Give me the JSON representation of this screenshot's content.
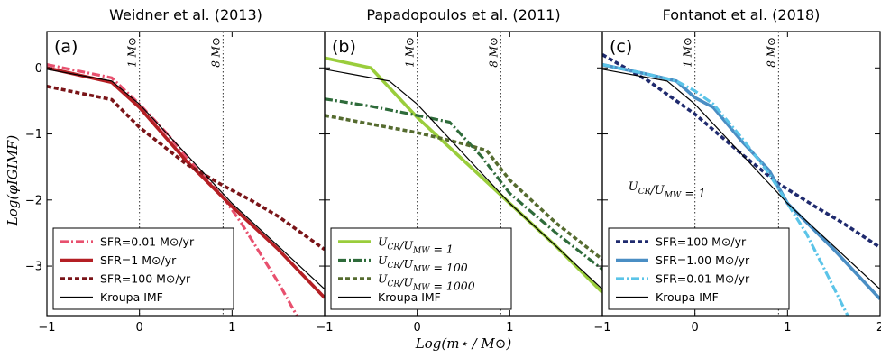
{
  "figure": {
    "xlabel": "Log(m⋆ / M⊙)",
    "ylabel": "Log(φIGIMF)"
  },
  "chart_data": [
    {
      "type": "line",
      "panel_label": "(a)",
      "title": "Weidner et al. (2013)",
      "xlim": [
        -1,
        2
      ],
      "ylim": [
        -3.75,
        0.55
      ],
      "xticks": [
        -1,
        0,
        1
      ],
      "yticks": [
        0,
        -1,
        -2,
        -3
      ],
      "vlines": [
        {
          "x": 0,
          "label": "1 M⊙"
        },
        {
          "x": 0.903,
          "label": "8 M⊙"
        }
      ],
      "legend_position": "lower-left",
      "series": [
        {
          "name": "SFR=0.01 M⊙/yr",
          "color": "#e8506e",
          "style": "dashdot",
          "x": [
            -1,
            -0.3,
            0,
            0.3,
            0.6,
            0.9,
            1.1,
            1.3,
            1.5,
            1.7
          ],
          "y": [
            0.05,
            -0.15,
            -0.55,
            -1.0,
            -1.5,
            -1.95,
            -2.35,
            -2.8,
            -3.25,
            -3.75
          ]
        },
        {
          "name": "SFR=1 M⊙/yr",
          "color": "#b41f24",
          "style": "solid",
          "x": [
            -1,
            -0.3,
            0,
            0.5,
            1.0,
            1.5,
            2.0
          ],
          "y": [
            0.0,
            -0.22,
            -0.6,
            -1.4,
            -2.1,
            -2.75,
            -3.48
          ]
        },
        {
          "name": "SFR=100 M⊙/yr",
          "color": "#7a1418",
          "style": "dashed",
          "x": [
            -1,
            -0.3,
            0,
            0.5,
            0.9,
            1.2,
            1.5,
            2.0
          ],
          "y": [
            -0.28,
            -0.48,
            -0.9,
            -1.45,
            -1.78,
            -2.0,
            -2.25,
            -2.75
          ]
        },
        {
          "name": "Kroupa IMF",
          "color": "#000000",
          "style": "thin",
          "x": [
            -1,
            -0.3,
            0,
            0.5,
            1.0,
            1.5,
            2.0
          ],
          "y": [
            -0.02,
            -0.2,
            -0.55,
            -1.3,
            -2.05,
            -2.7,
            -3.35
          ]
        }
      ]
    },
    {
      "type": "line",
      "panel_label": "(b)",
      "title": "Papadopoulos et al. (2011)",
      "xlim": [
        -1,
        2
      ],
      "ylim": [
        -3.75,
        0.55
      ],
      "xticks": [
        -1,
        0,
        1
      ],
      "yticks": [
        0,
        -1,
        -2,
        -3
      ],
      "vlines": [
        {
          "x": 0,
          "label": "1 M⊙"
        },
        {
          "x": 0.903,
          "label": "8 M⊙"
        }
      ],
      "legend_position": "lower-left",
      "series": [
        {
          "name": "U_CR/U_MW = 1",
          "color": "#9acd3c",
          "style": "solid",
          "x": [
            -1,
            -0.5,
            0,
            0.5,
            1.0,
            1.5,
            2.0
          ],
          "y": [
            0.15,
            0.0,
            -0.75,
            -1.4,
            -2.05,
            -2.7,
            -3.4
          ]
        },
        {
          "name": "U_CR/U_MW = 100",
          "color": "#2e6b3a",
          "style": "dashdot",
          "x": [
            -1,
            -0.5,
            0,
            0.35,
            0.7,
            1.0,
            1.5,
            2.0
          ],
          "y": [
            -0.47,
            -0.58,
            -0.72,
            -0.82,
            -1.35,
            -1.9,
            -2.5,
            -3.05
          ]
        },
        {
          "name": "U_CR/U_MW = 1000",
          "color": "#556b2f",
          "style": "dashed",
          "x": [
            -1,
            -0.5,
            0,
            0.5,
            0.75,
            1.0,
            1.5,
            2.0
          ],
          "y": [
            -0.72,
            -0.85,
            -0.98,
            -1.15,
            -1.25,
            -1.7,
            -2.35,
            -2.9
          ]
        },
        {
          "name": "Kroupa IMF",
          "color": "#000000",
          "style": "thin",
          "x": [
            -1,
            -0.3,
            0,
            0.5,
            1.0,
            1.5,
            2.0
          ],
          "y": [
            -0.02,
            -0.2,
            -0.55,
            -1.3,
            -2.05,
            -2.7,
            -3.35
          ]
        }
      ]
    },
    {
      "type": "line",
      "panel_label": "(c)",
      "title": "Fontanot et al. (2018)",
      "xlim": [
        -1,
        2
      ],
      "ylim": [
        -3.75,
        0.55
      ],
      "xticks": [
        -1,
        0,
        1,
        2
      ],
      "yticks": [
        0,
        -1,
        -2,
        -3
      ],
      "vlines": [
        {
          "x": 0,
          "label": "1 M⊙"
        },
        {
          "x": 0.903,
          "label": "8 M⊙"
        }
      ],
      "annotation": {
        "text": "U_CR/U_MW = 1",
        "x": -0.72,
        "y": -1.85
      },
      "legend_position": "lower-left",
      "series": [
        {
          "name": "SFR=100 M⊙/yr",
          "color": "#1f2a6e",
          "style": "dashed",
          "x": [
            -1,
            -0.5,
            0,
            0.5,
            0.9,
            1.3,
            1.6,
            2.0
          ],
          "y": [
            0.2,
            -0.2,
            -0.7,
            -1.3,
            -1.75,
            -2.1,
            -2.35,
            -2.72
          ]
        },
        {
          "name": "SFR=1.00 M⊙/yr",
          "color": "#4a8ec4",
          "style": "solid",
          "x": [
            -1,
            -0.5,
            -0.2,
            0,
            0.2,
            0.5,
            0.8,
            1.0,
            1.5,
            2.0
          ],
          "y": [
            0.05,
            -0.1,
            -0.2,
            -0.45,
            -0.6,
            -1.1,
            -1.55,
            -2.05,
            -2.75,
            -3.5
          ]
        },
        {
          "name": "SFR=0.01 M⊙/yr",
          "color": "#5bc4e8",
          "style": "dashdot",
          "x": [
            -1,
            -0.5,
            -0.2,
            0,
            0.2,
            0.5,
            0.8,
            1.0,
            1.2,
            1.4,
            1.65
          ],
          "y": [
            0.05,
            -0.1,
            -0.2,
            -0.35,
            -0.55,
            -1.05,
            -1.6,
            -2.05,
            -2.5,
            -3.05,
            -3.75
          ]
        },
        {
          "name": "Kroupa IMF",
          "color": "#000000",
          "style": "thin",
          "x": [
            -1,
            -0.3,
            0,
            0.5,
            1.0,
            1.5,
            2.0
          ],
          "y": [
            -0.02,
            -0.2,
            -0.55,
            -1.3,
            -2.05,
            -2.7,
            -3.35
          ]
        }
      ]
    }
  ]
}
